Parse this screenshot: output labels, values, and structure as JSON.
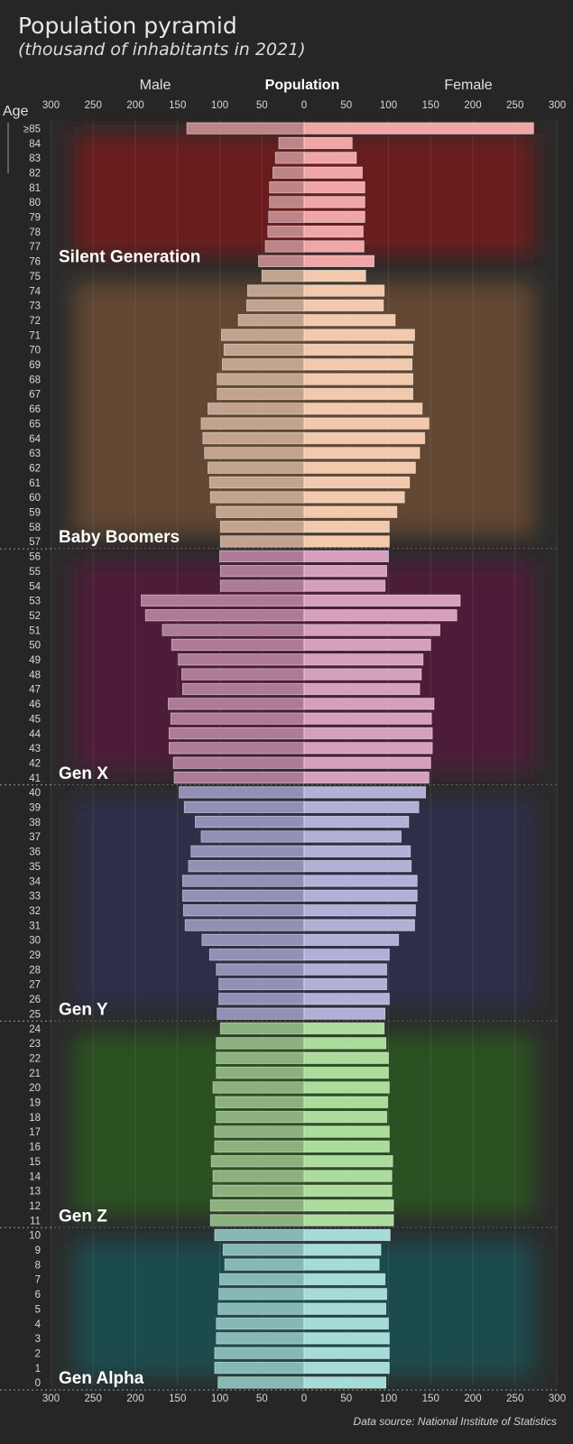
{
  "title": "Population pyramid",
  "subtitle": "(thousand of inhabitants in 2021)",
  "header": {
    "left": "Male",
    "center": "Population",
    "right": "Female"
  },
  "age_label": "Age",
  "source": "Data source: National Institute of Statistics",
  "chart_data": {
    "type": "bar",
    "orientation": "horizontal-pyramid",
    "xlim": [
      -300,
      300
    ],
    "x_ticks": [
      "300",
      "250",
      "200",
      "150",
      "100",
      "50",
      "0",
      "50",
      "100",
      "150",
      "200",
      "250",
      "300"
    ],
    "ages": [
      "0",
      "1",
      "2",
      "3",
      "4",
      "5",
      "6",
      "7",
      "8",
      "9",
      "10",
      "11",
      "12",
      "13",
      "14",
      "15",
      "16",
      "17",
      "18",
      "19",
      "20",
      "21",
      "22",
      "23",
      "24",
      "25",
      "26",
      "27",
      "28",
      "29",
      "30",
      "31",
      "32",
      "33",
      "34",
      "35",
      "36",
      "37",
      "38",
      "39",
      "40",
      "41",
      "42",
      "43",
      "44",
      "45",
      "46",
      "47",
      "48",
      "49",
      "50",
      "51",
      "52",
      "53",
      "54",
      "55",
      "56",
      "57",
      "58",
      "59",
      "60",
      "61",
      "62",
      "63",
      "64",
      "65",
      "66",
      "67",
      "68",
      "69",
      "70",
      "71",
      "72",
      "73",
      "74",
      "75",
      "76",
      "77",
      "78",
      "79",
      "80",
      "81",
      "82",
      "83",
      "84",
      "≥85"
    ],
    "series": [
      {
        "name": "Male",
        "values": [
          102,
          106,
          106,
          104,
          104,
          102,
          101,
          100,
          94,
          96,
          106,
          111,
          111,
          108,
          108,
          110,
          106,
          106,
          104,
          105,
          108,
          104,
          104,
          104,
          99,
          103,
          101,
          101,
          104,
          112,
          121,
          141,
          143,
          144,
          144,
          137,
          134,
          122,
          129,
          142,
          148,
          154,
          155,
          160,
          160,
          158,
          161,
          144,
          145,
          149,
          157,
          168,
          188,
          193,
          99,
          99,
          100,
          99,
          99,
          104,
          111,
          112,
          114,
          118,
          120,
          122,
          114,
          103,
          103,
          97,
          95,
          98,
          78,
          68,
          67,
          50,
          54,
          46,
          43,
          42,
          41,
          41,
          37,
          34,
          30,
          139
        ]
      },
      {
        "name": "Female",
        "values": [
          97,
          101,
          101,
          101,
          100,
          97,
          98,
          96,
          89,
          91,
          102,
          106,
          106,
          104,
          104,
          105,
          101,
          101,
          98,
          99,
          101,
          100,
          100,
          97,
          95,
          96,
          101,
          98,
          98,
          101,
          112,
          131,
          132,
          134,
          134,
          127,
          126,
          115,
          124,
          136,
          144,
          148,
          150,
          152,
          152,
          151,
          154,
          137,
          139,
          141,
          150,
          161,
          181,
          185,
          96,
          98,
          100,
          101,
          101,
          110,
          119,
          125,
          132,
          137,
          143,
          148,
          140,
          129,
          129,
          128,
          129,
          131,
          108,
          94,
          95,
          73,
          83,
          71,
          70,
          72,
          72,
          72,
          69,
          62,
          57,
          272
        ]
      }
    ],
    "generations": [
      {
        "name": "Silent Generation",
        "ages": [
          76,
          85
        ],
        "color": "#6a1e1e",
        "male_bar": "#bd8587",
        "female_bar": "#f0a6a6"
      },
      {
        "name": "Baby Boomers",
        "ages": [
          57,
          75
        ],
        "color": "#624630",
        "male_bar": "#c2a48e",
        "female_bar": "#f2c9ad"
      },
      {
        "name": "Gen X",
        "ages": [
          41,
          56
        ],
        "color": "#4e1e38",
        "male_bar": "#ad7b96",
        "female_bar": "#d6a0bd"
      },
      {
        "name": "Gen Y",
        "ages": [
          25,
          40
        ],
        "color": "#2e2d4a",
        "male_bar": "#9290b4",
        "female_bar": "#b3b0d8"
      },
      {
        "name": "Gen Z",
        "ages": [
          11,
          24
        ],
        "color": "#2a5120",
        "male_bar": "#8cb07e",
        "female_bar": "#abdc9c"
      },
      {
        "name": "Gen Alpha",
        "ages": [
          0,
          10
        ],
        "color": "#1c4c4e",
        "male_bar": "#86b8b6",
        "female_bar": "#a6dcd8"
      }
    ]
  }
}
